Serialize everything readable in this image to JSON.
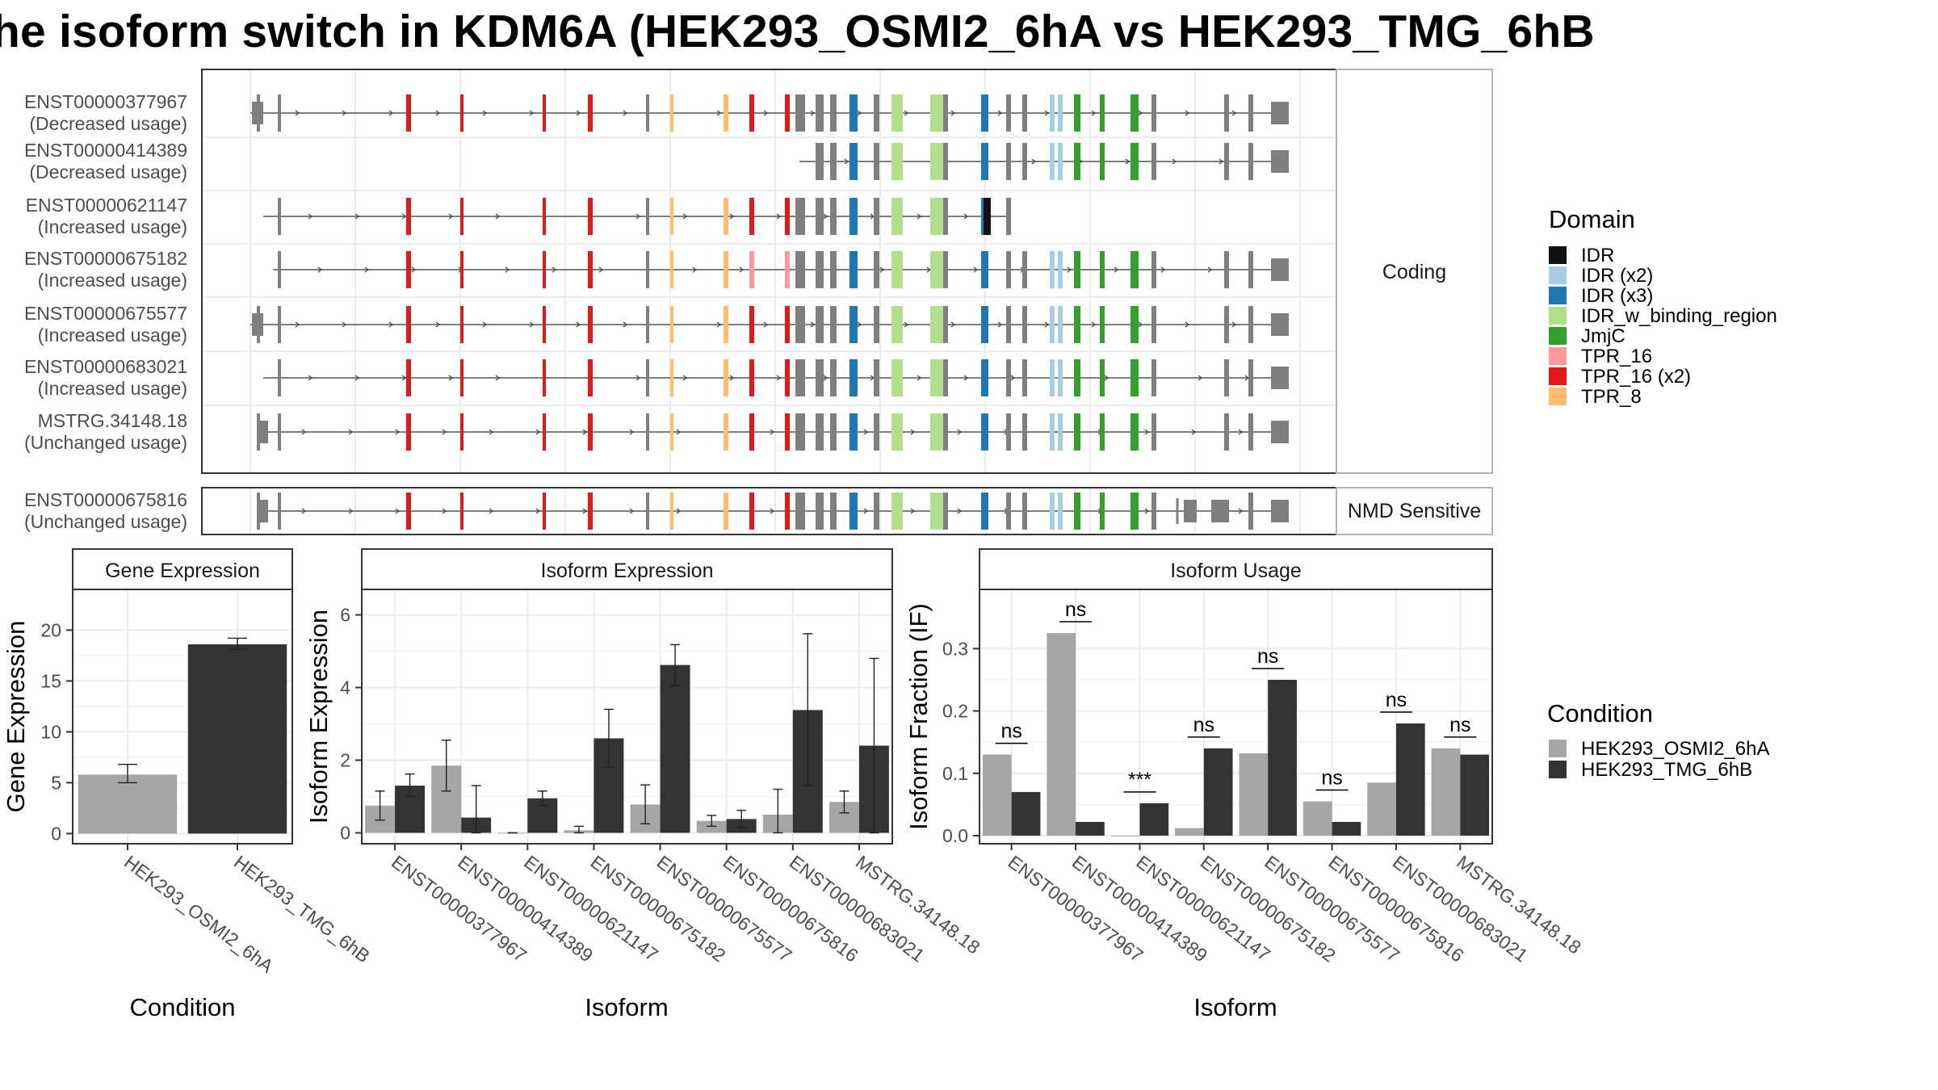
{
  "title": "he isoform switch in KDM6A (HEK293_OSMI2_6hA vs HEK293_TMG_6hB",
  "colors": {
    "intron": "#7f7f7f",
    "exon": "#7f7f7f",
    "condition_a": "#a6a6a6",
    "condition_b": "#333333",
    "panel_border": "#333333",
    "strip_fill": "#ffffff",
    "grid": "#ebebeb"
  },
  "structure": {
    "section_labels": {
      "coding": "Coding",
      "nmd": "NMD Sensitive"
    },
    "legend_title": "Domain",
    "domains": [
      {
        "key": "IDR",
        "label": "IDR",
        "color": "#111111"
      },
      {
        "key": "IDR2",
        "label": "IDR (x2)",
        "color": "#a6cee3"
      },
      {
        "key": "IDR3",
        "label": "IDR (x3)",
        "color": "#1f78b4"
      },
      {
        "key": "IDRB",
        "label": "IDR_w_binding_region",
        "color": "#b2df8a"
      },
      {
        "key": "JmjC",
        "label": "JmjC",
        "color": "#33a02c"
      },
      {
        "key": "TPR16",
        "label": "TPR_16",
        "color": "#fb9a99"
      },
      {
        "key": "TPR16x2",
        "label": "TPR_16 (x2)",
        "color": "#e31a1c"
      },
      {
        "key": "TPR8",
        "label": "TPR_8",
        "color": "#fdbf6f"
      }
    ],
    "transcripts": [
      {
        "id": "ENST00000377967",
        "usage": "(Decreased usage)",
        "section": "coding",
        "variant": "full"
      },
      {
        "id": "ENST00000414389",
        "usage": "(Decreased usage)",
        "section": "coding",
        "variant": "short"
      },
      {
        "id": "ENST00000621147",
        "usage": "(Increased usage)",
        "section": "coding",
        "variant": "trunc"
      },
      {
        "id": "ENST00000675182",
        "usage": "(Increased usage)",
        "section": "coding",
        "variant": "tpr"
      },
      {
        "id": "ENST00000675577",
        "usage": "(Increased usage)",
        "section": "coding",
        "variant": "full"
      },
      {
        "id": "ENST00000683021",
        "usage": "(Increased usage)",
        "section": "coding",
        "variant": "alt"
      },
      {
        "id": "MSTRG.34148.18",
        "usage": "(Unchanged usage)",
        "section": "coding",
        "variant": "mstrg"
      },
      {
        "id": "ENST00000675816",
        "usage": "(Unchanged usage)",
        "section": "nmd",
        "variant": "nmd"
      }
    ]
  },
  "condition_legend": {
    "title": "Condition",
    "items": [
      "HEK293_OSMI2_6hA",
      "HEK293_TMG_6hB"
    ]
  },
  "chart_data": [
    {
      "type": "bar",
      "title": "Gene Expression",
      "xlabel": "Condition",
      "ylabel": "Gene Expression",
      "categories": [
        "HEK293_OSMI2_6hA",
        "HEK293_TMG_6hB"
      ],
      "values": [
        5.8,
        18.6
      ],
      "error_low": [
        5.0,
        18.1
      ],
      "error_high": [
        6.8,
        19.2
      ],
      "ylim": [
        -1,
        24
      ],
      "yticks": [
        0,
        5,
        10,
        15,
        20
      ],
      "grid": true
    },
    {
      "type": "bar",
      "title": "Isoform Expression",
      "xlabel": "Isoform",
      "ylabel": "Isoform Expression",
      "categories": [
        "ENST00000377967",
        "ENST00000414389",
        "ENST00000621147",
        "ENST00000675182",
        "ENST00000675577",
        "ENST00000675816",
        "ENST00000683021",
        "MSTRG.34148.18"
      ],
      "series": [
        {
          "name": "HEK293_OSMI2_6hA",
          "values": [
            0.75,
            1.85,
            0.0,
            0.07,
            0.78,
            0.33,
            0.5,
            0.85
          ],
          "error_low": [
            0.35,
            1.15,
            0.0,
            0.0,
            0.25,
            0.18,
            0.0,
            0.55
          ],
          "error_high": [
            1.15,
            2.55,
            0.0,
            0.18,
            1.32,
            0.48,
            1.2,
            1.15
          ]
        },
        {
          "name": "HEK293_TMG_6hB",
          "values": [
            1.3,
            0.42,
            0.95,
            2.6,
            4.62,
            0.38,
            3.38,
            2.4
          ],
          "error_low": [
            1.0,
            0.0,
            0.75,
            1.8,
            4.05,
            0.15,
            1.3,
            0.0
          ],
          "error_high": [
            1.62,
            1.3,
            1.15,
            3.4,
            5.18,
            0.62,
            5.48,
            4.8
          ]
        }
      ],
      "ylim": [
        -0.3,
        6.7
      ],
      "yticks": [
        0,
        2,
        4,
        6
      ],
      "grid": true
    },
    {
      "type": "bar",
      "title": "Isoform Usage",
      "xlabel": "Isoform",
      "ylabel": "Isoform Fraction (IF)",
      "categories": [
        "ENST00000377967",
        "ENST00000414389",
        "ENST00000621147",
        "ENST00000675182",
        "ENST00000675577",
        "ENST00000675816",
        "ENST00000683021",
        "MSTRG.34148.18"
      ],
      "series": [
        {
          "name": "HEK293_OSMI2_6hA",
          "values": [
            0.13,
            0.325,
            0.0,
            0.012,
            0.132,
            0.055,
            0.085,
            0.14
          ]
        },
        {
          "name": "HEK293_TMG_6hB",
          "values": [
            0.07,
            0.022,
            0.052,
            0.14,
            0.25,
            0.022,
            0.18,
            0.13
          ]
        }
      ],
      "significance": [
        "ns",
        "ns",
        "***",
        "ns",
        "ns",
        "ns",
        "ns",
        "ns"
      ],
      "ylim": [
        -0.013,
        0.395
      ],
      "yticks": [
        0.0,
        0.1,
        0.2,
        0.3
      ],
      "yticklabels": [
        "0.0",
        "0.1",
        "0.2",
        "0.3"
      ],
      "grid": true
    }
  ]
}
